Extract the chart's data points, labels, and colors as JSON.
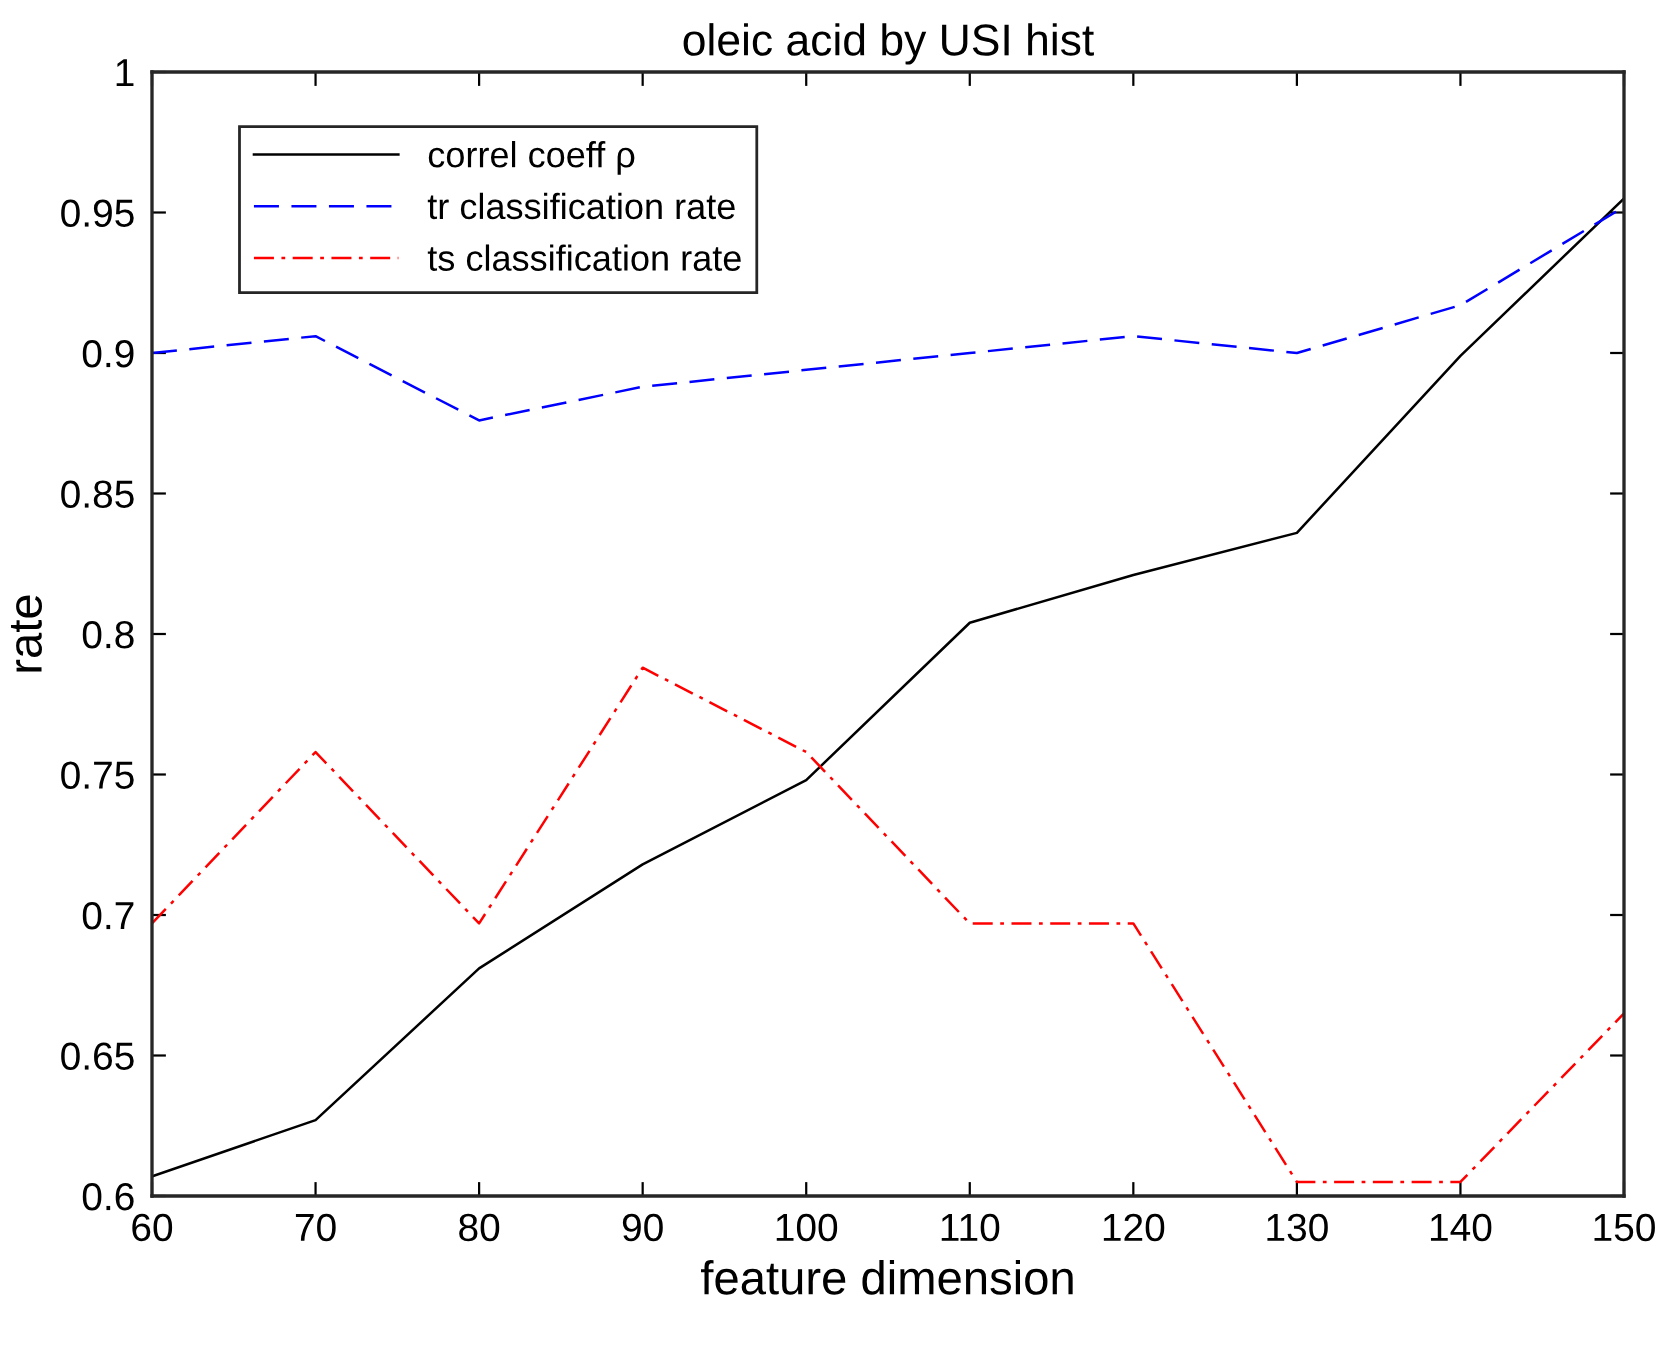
{
  "chart_data": {
    "type": "line",
    "title": "oleic acid by USI hist",
    "xlabel": "feature dimension",
    "ylabel": "rate",
    "x": [
      60,
      70,
      80,
      90,
      100,
      110,
      120,
      130,
      140,
      150
    ],
    "series": [
      {
        "name": "correl coeff ρ",
        "color": "#000000",
        "line_style": "solid",
        "values": [
          0.607,
          0.627,
          0.681,
          0.718,
          0.748,
          0.804,
          0.821,
          0.836,
          0.899,
          0.955
        ]
      },
      {
        "name": "tr classification rate",
        "color": "#0000ff",
        "line_style": "dashed",
        "values": [
          0.9,
          0.906,
          0.876,
          0.888,
          0.894,
          0.9,
          0.906,
          0.9,
          0.917,
          0.952
        ]
      },
      {
        "name": "ts classification rate",
        "color": "#ff0000",
        "line_style": "dashdot",
        "values": [
          0.697,
          0.758,
          0.697,
          0.788,
          0.758,
          0.697,
          0.697,
          0.605,
          0.605,
          0.665
        ]
      }
    ],
    "xlim": [
      60,
      150
    ],
    "xticks": [
      60,
      70,
      80,
      90,
      100,
      110,
      120,
      130,
      140,
      150
    ],
    "ylim": [
      0.6,
      1
    ],
    "yticks": [
      0.6,
      0.65,
      0.7,
      0.75,
      0.8,
      0.85,
      0.9,
      0.95,
      1
    ],
    "grid": false,
    "legend": "top left"
  }
}
